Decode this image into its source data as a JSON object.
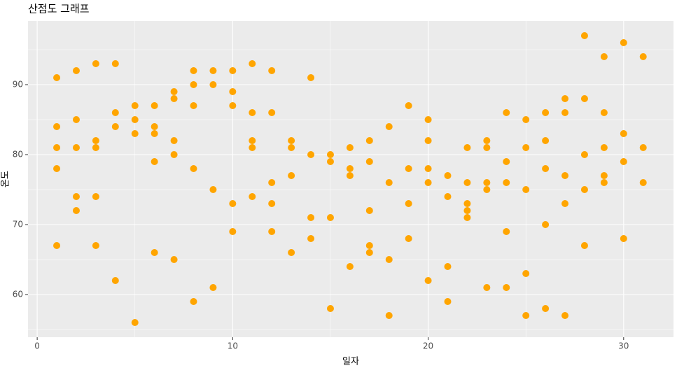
{
  "chart_data": {
    "type": "scatter",
    "title": "산점도 그래프",
    "x_label": "일자",
    "y_label": "온도",
    "color": "#ffa500",
    "x": [
      1,
      1,
      1,
      1,
      1,
      2,
      2,
      2,
      2,
      2,
      3,
      3,
      3,
      3,
      3,
      4,
      4,
      4,
      4,
      5,
      5,
      5,
      5,
      6,
      6,
      6,
      6,
      6,
      7,
      7,
      7,
      7,
      7,
      8,
      8,
      8,
      8,
      8,
      9,
      9,
      9,
      9,
      10,
      10,
      10,
      10,
      10,
      11,
      11,
      11,
      11,
      11,
      12,
      12,
      12,
      12,
      12,
      13,
      13,
      13,
      13,
      14,
      14,
      14,
      14,
      15,
      15,
      15,
      15,
      16,
      16,
      16,
      16,
      17,
      17,
      17,
      17,
      17,
      18,
      18,
      18,
      18,
      19,
      19,
      19,
      19,
      20,
      20,
      20,
      20,
      20,
      21,
      21,
      21,
      21,
      22,
      22,
      22,
      22,
      22,
      23,
      23,
      23,
      23,
      23,
      24,
      24,
      24,
      24,
      24,
      25,
      25,
      25,
      25,
      25,
      26,
      26,
      26,
      26,
      26,
      27,
      27,
      27,
      27,
      27,
      28,
      28,
      28,
      28,
      28,
      29,
      29,
      29,
      29,
      29,
      30,
      30,
      30,
      30,
      31,
      31,
      31
    ],
    "values": [
      91,
      84,
      81,
      78,
      67,
      92,
      85,
      81,
      74,
      72,
      93,
      82,
      81,
      74,
      67,
      93,
      86,
      84,
      62,
      87,
      85,
      83,
      56,
      87,
      84,
      83,
      79,
      66,
      89,
      88,
      82,
      80,
      65,
      92,
      90,
      87,
      78,
      59,
      92,
      90,
      75,
      61,
      92,
      89,
      87,
      73,
      69,
      93,
      86,
      82,
      81,
      74,
      92,
      86,
      76,
      73,
      69,
      82,
      81,
      77,
      66,
      91,
      80,
      71,
      68,
      80,
      79,
      71,
      58,
      81,
      78,
      77,
      64,
      82,
      79,
      72,
      67,
      66,
      84,
      76,
      65,
      57,
      87,
      78,
      73,
      68,
      85,
      82,
      78,
      76,
      62,
      77,
      74,
      64,
      59,
      81,
      76,
      73,
      72,
      71,
      82,
      81,
      76,
      75,
      61,
      86,
      79,
      76,
      69,
      61,
      85,
      81,
      75,
      63,
      57,
      86,
      82,
      78,
      70,
      58,
      88,
      86,
      77,
      73,
      57,
      97,
      88,
      80,
      75,
      67,
      94,
      86,
      81,
      77,
      76,
      96,
      83,
      79,
      68,
      94,
      81,
      76
    ],
    "xlim": [
      -0.47,
      32.55
    ],
    "xticks": [
      0,
      10,
      20,
      30
    ],
    "ylim": [
      53.9,
      99.1
    ],
    "yticks": [
      60,
      70,
      80,
      90
    ],
    "grid": true
  }
}
